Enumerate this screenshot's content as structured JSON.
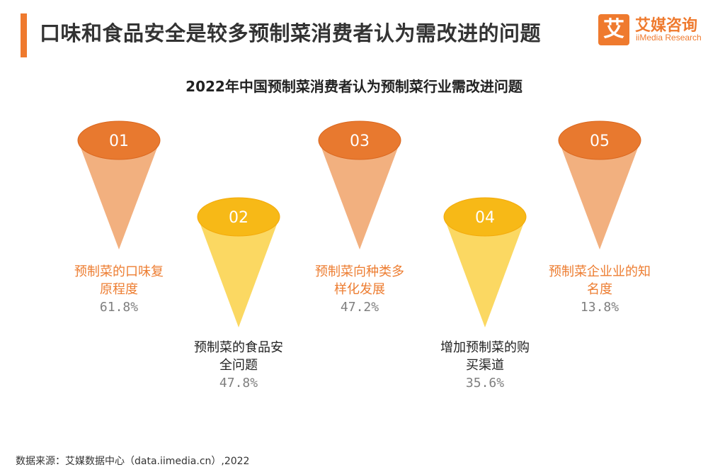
{
  "header": {
    "title": "口味和食品安全是较多预制菜消费者认为需改进的问题"
  },
  "logo": {
    "mark": "艾",
    "name_cn": "艾媒咨询",
    "name_en": "iiMedia Research"
  },
  "chart_data": {
    "type": "bar",
    "title": "2022年中国预制菜消费者认为预制菜行业需改进问题",
    "unit": "%",
    "categories": [
      "预制菜的口味复原程度",
      "预制菜的食品安全问题",
      "预制菜向种类多样化发展",
      "增加预制菜的购买渠道",
      "预制菜企业业的知名度"
    ],
    "numbers": [
      "01",
      "02",
      "03",
      "04",
      "05"
    ],
    "label_lines": [
      [
        "预制菜的口味复",
        "原程度"
      ],
      [
        "预制菜的食品安",
        "全问题"
      ],
      [
        "预制菜向种类多",
        "样化发展"
      ],
      [
        "增加预制菜的购",
        "买渠道"
      ],
      [
        "预制菜企业业的知",
        "名度"
      ]
    ],
    "values": [
      61.8,
      47.8,
      47.2,
      35.6,
      13.8
    ],
    "value_labels": [
      "61.8%",
      "47.8%",
      "47.2%",
      "35.6%",
      "13.8%"
    ],
    "colors": {
      "orange_top": "#e8792f",
      "orange_body": "#f2b07f",
      "yellow_top": "#f7b917",
      "yellow_body": "#fbd862",
      "orange_label": "#ed7d31",
      "dark_label": "#222222",
      "value_gray": "#7f7f7f"
    }
  },
  "footer": {
    "source": "数据来源：艾媒数据中心（data.iimedia.cn）,2022"
  }
}
